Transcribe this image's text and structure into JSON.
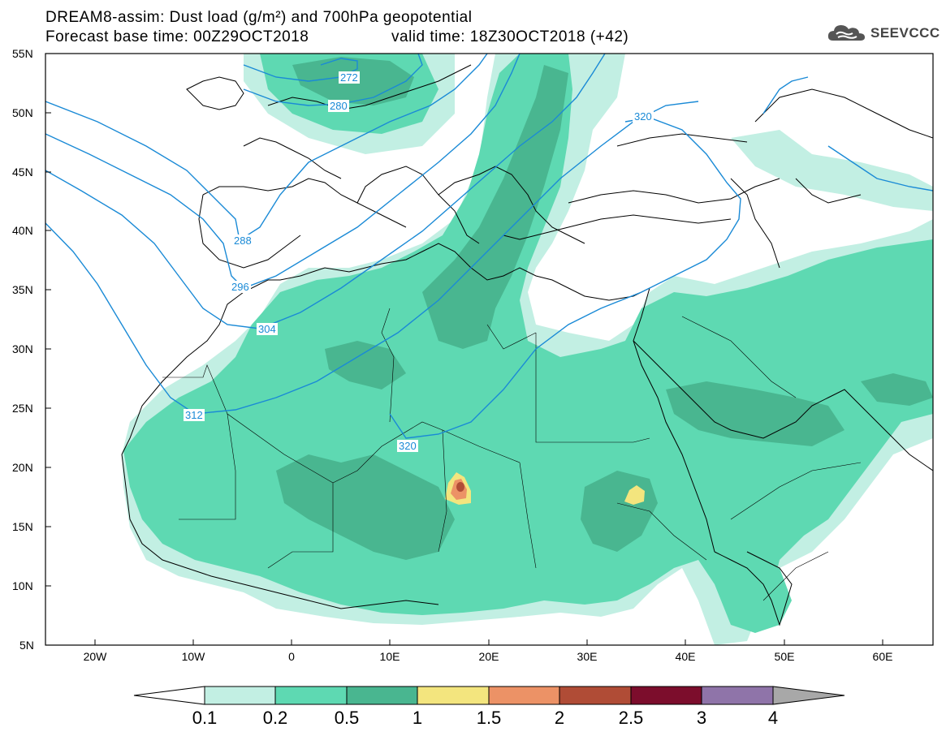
{
  "title": {
    "line1": "DREAM8-assim: Dust load (g/m²) and 700hPa geopotential",
    "line2": "Forecast base time: 00Z29OCT2018",
    "line2b": "valid time: 18Z30OCT2018 (+42)"
  },
  "logo": {
    "text": "SEEVCCC",
    "icon": "cloud-icon"
  },
  "map": {
    "lat_labels": [
      "55N",
      "50N",
      "45N",
      "40N",
      "35N",
      "30N",
      "25N",
      "20N",
      "15N",
      "10N",
      "5N"
    ],
    "lon_labels": [
      "20W",
      "10W",
      "0",
      "10E",
      "20E",
      "30E",
      "40E",
      "50E",
      "60E"
    ],
    "contour_labels": [
      "272",
      "280",
      "288",
      "296",
      "304",
      "312",
      "320",
      "320"
    ]
  },
  "colorbar": {
    "labels": [
      "0.1",
      "0.2",
      "0.5",
      "1",
      "1.5",
      "2",
      "2.5",
      "3",
      "4"
    ],
    "colors": [
      "#c2efe3",
      "#5ed9b2",
      "#49b690",
      "#f3e57e",
      "#ec9266",
      "#b04c36",
      "#7c0d2c",
      "#8f74a9"
    ],
    "under_color": "#ffffff",
    "over_color": "#a8a8a8"
  }
}
